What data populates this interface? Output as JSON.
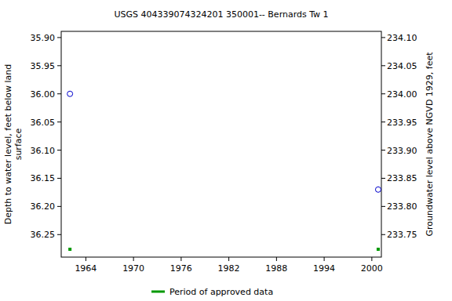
{
  "chart_data": {
    "type": "scatter",
    "title": "USGS 404339074324201 350001-- Bernards Tw 1",
    "ylabel": "Depth to water level, feet below land surface",
    "y2label": "Groundwater level above NGVD 1929, feet",
    "x": [
      1962,
      2000.8
    ],
    "xlim": [
      1960.9,
      2001.2
    ],
    "xticks": [
      1964,
      1970,
      1976,
      1982,
      1988,
      1994,
      2000
    ],
    "ylim": [
      35.889,
      36.29
    ],
    "yticks": [
      {
        "value": 35.9,
        "label": "35.90"
      },
      {
        "value": 35.95,
        "label": "35.95"
      },
      {
        "value": 36.0,
        "label": "36.00"
      },
      {
        "value": 36.05,
        "label": "36.05"
      },
      {
        "value": 36.1,
        "label": "36.10"
      },
      {
        "value": 36.15,
        "label": "36.15"
      },
      {
        "value": 36.2,
        "label": "36.20"
      },
      {
        "value": 36.25,
        "label": "36.25"
      }
    ],
    "y2lim": [
      234.111,
      233.71
    ],
    "y2ticks": [
      {
        "value": 234.1,
        "label": "234.10"
      },
      {
        "value": 234.05,
        "label": "234.05"
      },
      {
        "value": 234.0,
        "label": "234.00"
      },
      {
        "value": 233.95,
        "label": "233.95"
      },
      {
        "value": 233.9,
        "label": "233.90"
      },
      {
        "value": 233.85,
        "label": "233.85"
      },
      {
        "value": 233.8,
        "label": "233.80"
      },
      {
        "value": 233.75,
        "label": "233.75"
      }
    ],
    "grid": false,
    "series": [
      {
        "values": [
          36.0,
          36.17
        ],
        "color": "#0000cc",
        "marker": "circle"
      },
      {
        "name": "Period of approved data",
        "color": "#009900",
        "x": [
          1962,
          2000.8
        ],
        "marker": "square"
      }
    ],
    "legend": "bottom"
  }
}
